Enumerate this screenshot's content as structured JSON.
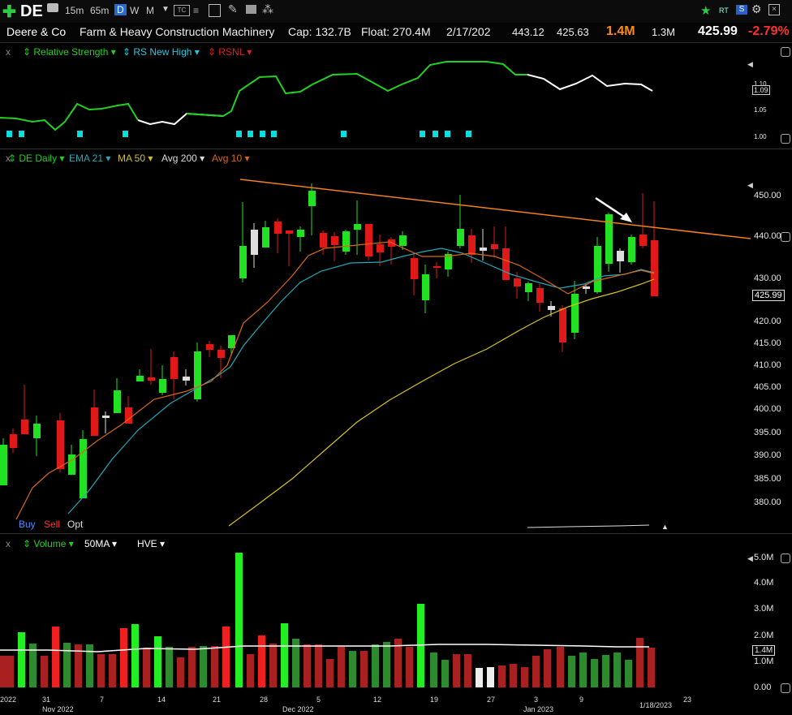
{
  "toolbar": {
    "symbol": "DE",
    "intervals": [
      "15m",
      "65m",
      "D",
      "W",
      "M"
    ],
    "active_interval": "D",
    "right_tags": [
      "RT",
      "S"
    ]
  },
  "info": {
    "name": "Deere & Co",
    "industry": "Farm & Heavy Construction Machinery",
    "cap": "Cap: 132.7B",
    "float": "Float: 270.4M",
    "earnings": "2/17/202",
    "high": "443.12",
    "low": "425.63",
    "volume": "1.4M",
    "avg_volume": "1.3M",
    "price": "425.99",
    "change": "-2.79%"
  },
  "rs_panel": {
    "close": "x",
    "items": [
      "Relative Strength",
      "RS New High",
      "RSNL"
    ],
    "axis": [
      "1.10",
      "1.05",
      "1.00"
    ],
    "value_tag": "1.09"
  },
  "price_panel": {
    "items": [
      "DE Daily",
      "EMA 21",
      "MA 50",
      "Avg 200",
      "Avg 10"
    ],
    "axis": [
      "450.00",
      "440.00",
      "430.00",
      "420.00",
      "415.00",
      "410.00",
      "405.00",
      "400.00",
      "395.00",
      "390.00",
      "385.00",
      "380.00"
    ],
    "price_tag": "425.99",
    "trade": [
      "Buy",
      "Sell",
      "Opt"
    ]
  },
  "volume_panel": {
    "close": "x",
    "items": [
      "Volume",
      "50MA",
      "HVE"
    ],
    "axis": [
      "5.0M",
      "4.0M",
      "3.0M",
      "2.0M",
      "1.0M",
      "0.00"
    ],
    "value_tag": "1.4M"
  },
  "dates": {
    "days": [
      "31",
      "7",
      "14",
      "21",
      "28",
      "5",
      "12",
      "19",
      "27",
      "3",
      "9",
      "23"
    ],
    "months": [
      "Nov 2022",
      "Dec 2022",
      "Jan 2023"
    ],
    "edge_left": "2022",
    "cursor_date": "1/18/2023"
  },
  "colors": {
    "up": "#22e022",
    "down": "#e01818",
    "ema21": "#22a8b8",
    "ma50": "#d8c020",
    "avg10": "#d86818",
    "trendline": "#f08020",
    "rs_line": "#22d022",
    "rs_marker": "#00e0e0",
    "price_change": "#ff3030",
    "volume_hl": "#ff8a1a"
  }
}
